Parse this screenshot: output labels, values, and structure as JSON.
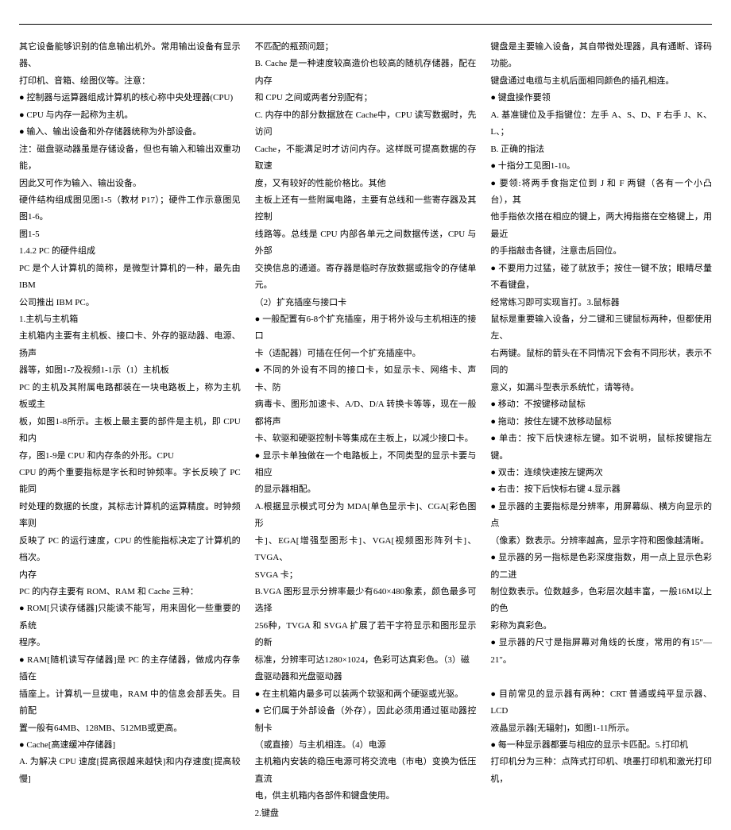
{
  "col1": [
    "其它设备能够识别的信息输出机外。常用输出设备有显示器、",
    "打印机、音箱、绘图仪等。注意：",
    "● 控制器与运算器组成计算机的核心称中央处理器(CPU)",
    "● CPU 与内存一起称为主机。",
    "● 输入、输出设备和外存储器统称为外部设备。",
    "注：磁盘驱动器虽是存储设备，但也有输入和输出双重功能，",
    "因此又可作为输入、输出设备。",
    "硬件结构组成图见图1-5（教材 P17）；硬件工作示意图见图1-6。",
    "  图1-5",
    "1.4.2 PC 的硬件组成",
    "PC 是个人计算机的简称，是微型计算机的一种，最先由 IBM",
    "公司推出 IBM PC。",
    "1.主机与主机箱",
    "主机箱内主要有主机板、接口卡、外存的驱动器、电源、扬声",
    "器等，如图1-7及视频1-1示（1）主机板",
    "PC 的主机及其附属电路都装在一块电路板上，称为主机板或主",
    "板，如图1-8所示。主板上最主要的部件是主机，即 CPU 和内",
    "存，图1-9是 CPU 和内存条的外形。CPU",
    "CPU 的两个重要指标是字长和时钟频率。字长反映了 PC 能同",
    "时处理的数据的长度，其标志计算机的运算精度。时钟频率则",
    "反映了 PC 的运行速度，CPU 的性能指标决定了计算机的档次。",
    "内存",
    "PC 的内存主要有 ROM、RAM 和 Cache 三种：",
    "● ROM[只读存储器]只能读不能写，用来固化一些重要的系统",
    "程序。",
    "● RAM[随机读写存储器]是 PC 的主存储器，做成内存条插在",
    "插座上。计算机一旦拔电，RAM 中的信息会部丢失。目前配",
    "置一般有64MB、128MB、512MB或更高。",
    "● Cache[高速缓冲存储器]",
    "A. 为解决 CPU 速度[提高很越来越快]和内存速度[提高较慢]"
  ],
  "col2": [
    "不匹配的瓶颈问题；",
    "B. Cache 是一种速度较高造价也较高的随机存储器，配在内存",
    "和 CPU 之间或两者分别配有；",
    "C. 内存中的部分数据放在 Cache中，CPU 读写数据时，先访问",
    "Cache，不能满足时才访问内存。这样既可提高数据的存取速",
    "度，又有较好的性能价格比。其他",
    "主板上还有一些附属电路，主要有总线和一些寄存器及其控制",
    "线路等。总线是 CPU 内部各单元之间数据传送，CPU 与外部",
    "交换信息的通道。寄存器是临时存放数据或指令的存储单元。",
    "（2）扩充插座与接口卡",
    "● 一般配置有6-8个扩充插座，用于将外设与主机相连的接口",
    "卡（适配器）可插在任何一个扩充插座中。",
    "● 不同的外设有不同的接口卡，如显示卡、网络卡、声卡、防",
    "病毒卡、图形加速卡、A/D、D/A 转换卡等等，现在一般都将声",
    "卡、软驱和硬驱控制卡等集成在主板上，以减少接口卡。",
    "● 显示卡单独做在一个电路板上，不同类型的显示卡要与相应",
    "的显示器相配。",
    "A.根据显示模式可分为 MDA[单色显示卡]、CGA[彩色图形",
    "卡]、EGA[增强型图形卡]、VGA[视频图形阵列卡]、TVGA、",
    "SVGA 卡；",
    "B.VGA 图形显示分辨率最少有640×480象素，颜色最多可选择",
    "256种，TVGA 和 SVGA 扩展了若干字符显示和图形显示的新",
    "标准，分辨率可达1280×1024，色彩可达真彩色。（3）磁",
    "盘驱动器和光盘驱动器",
    "● 在主机箱内最多可以装两个软驱和两个硬驱或光驱。",
    "● 它们属于外部设备（外存），因此必须用通过驱动器控制卡",
    "（或直接）与主机相连。（4）电源",
    "主机箱内安装的稳压电源可将交流电（市电）变换为低压直流",
    "电，供主机箱内各部件和键盘使用。",
    "2.键盘"
  ],
  "col3": [
    "键盘是主要输入设备，其自带微处理器，具有通断、译码功能。",
    "键盘通过电缆与主机后面相同颜色的插孔相连。",
    "● 键盘操作要领",
    "A. 基准键位及手指键位：左手 A、S、D、F 右手 J、K、L、；",
    "B. 正确的指法",
    "● 十指分工见图1-10。",
    "● 要领:将两手食指定位到 J 和 F 两键（各有一个小凸台），其",
    "他手指依次搭在相应的键上，两大拇指搭在空格键上，用最近",
    "的手指敲击各键，注意击后回位。",
    "● 不要用力过猛，碰了就放手；按住一键不放；眼睛尽量不看键盘，",
    "经常练习即可实现盲打。3.鼠标器",
    "鼠标是重要输入设备，分二键和三键鼠标两种，但都使用左、",
    "右两键。鼠标的箭头在不同情况下会有不同形状，表示不同的",
    "意义，如漏斗型表示系统忙，请等待。",
    "● 移动：不按键移动鼠标",
    "● 拖动：按住左键不放移动鼠标",
    "● 单击：按下后快速标左键。如不说明，鼠标按键指左键。",
    "● 双击：连续快速按左键两次",
    "● 右击：按下后快标右键    4.显示器",
    "● 显示器的主要指标是分辨率，用屏幕纵、横方向显示的点",
    "（像素）数表示。分辨率越高，显示字符和图像越清晰。",
    "● 显示器的另一指标是色彩深度指数，用一点上显示色彩的二进",
    "制位数表示。位数越多，色彩层次越丰富，一般16M以上的色",
    "彩称为真彩色。",
    "● 显示器的尺寸是指屏幕对角线的长度，常用的有15″—21″。",
    "",
    "● 目前常见的显示器有两种：CRT 普通或纯平显示器、LCD",
    "液晶显示器[无辐射]，如图1-11所示。",
    "● 每一种显示器都要与相应的显示卡匹配。5.打印机",
    "打印机分为三种：点阵式打印机、喷墨打印机和激光打印机，"
  ]
}
